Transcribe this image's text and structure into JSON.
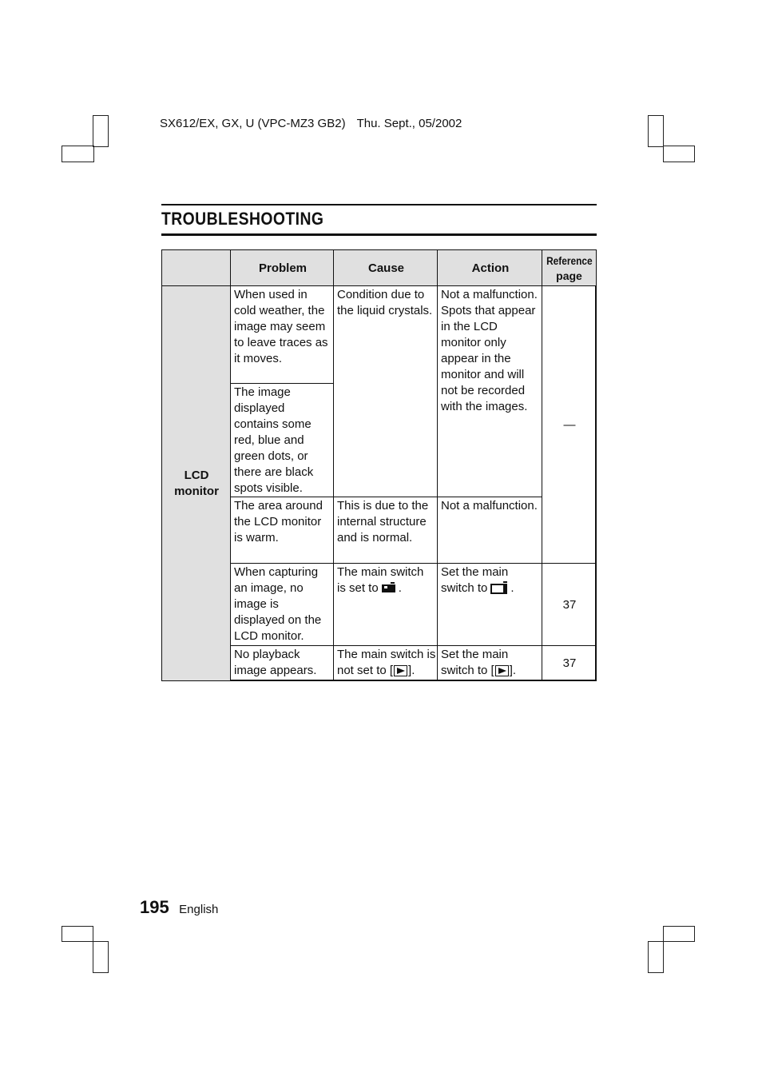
{
  "header": {
    "model": "SX612/EX, GX, U (VPC-MZ3 GB2)",
    "date": "Thu. Sept., 05/2002"
  },
  "title": "TROUBLESHOOTING",
  "table": {
    "columns": [
      "Problem",
      "Cause",
      "Action"
    ],
    "ref_header_line1": "Reference",
    "ref_header_line2": "page",
    "category": "LCD monitor",
    "rows": [
      {
        "problem": "When used in cold weather, the image may seem to leave traces as it moves."
      },
      {
        "problem": "The image displayed contains some red, blue and green dots, or there are black spots visible."
      },
      {
        "cause": "Condition due to the liquid crystals.",
        "action": "Not a malfunction. Spots that appear in the LCD monitor only appear in the monitor and will not be recorded with the images.",
        "ref": "—"
      },
      {
        "problem": "The area around the LCD monitor is warm.",
        "cause": "This is due to the internal structure and is normal.",
        "action": "Not a malfunction."
      },
      {
        "problem": "When capturing an image, no image is displayed on the LCD monitor.",
        "cause_before": "The main switch is set to",
        "cause_icon": "camera-filled-icon",
        "cause_after": ".",
        "action_before": "Set the main switch to",
        "action_icon": "camera-outline-icon",
        "action_after": ".",
        "ref": "37"
      },
      {
        "problem": "No playback image appears.",
        "cause_before": "The main switch is not set to [",
        "cause_icon": "play-icon",
        "cause_after": "].",
        "action_before": "Set the main switch to [",
        "action_icon": "play-icon",
        "action_after": "].",
        "ref": "37"
      }
    ]
  },
  "footer": {
    "page_number": "195",
    "language": "English"
  }
}
